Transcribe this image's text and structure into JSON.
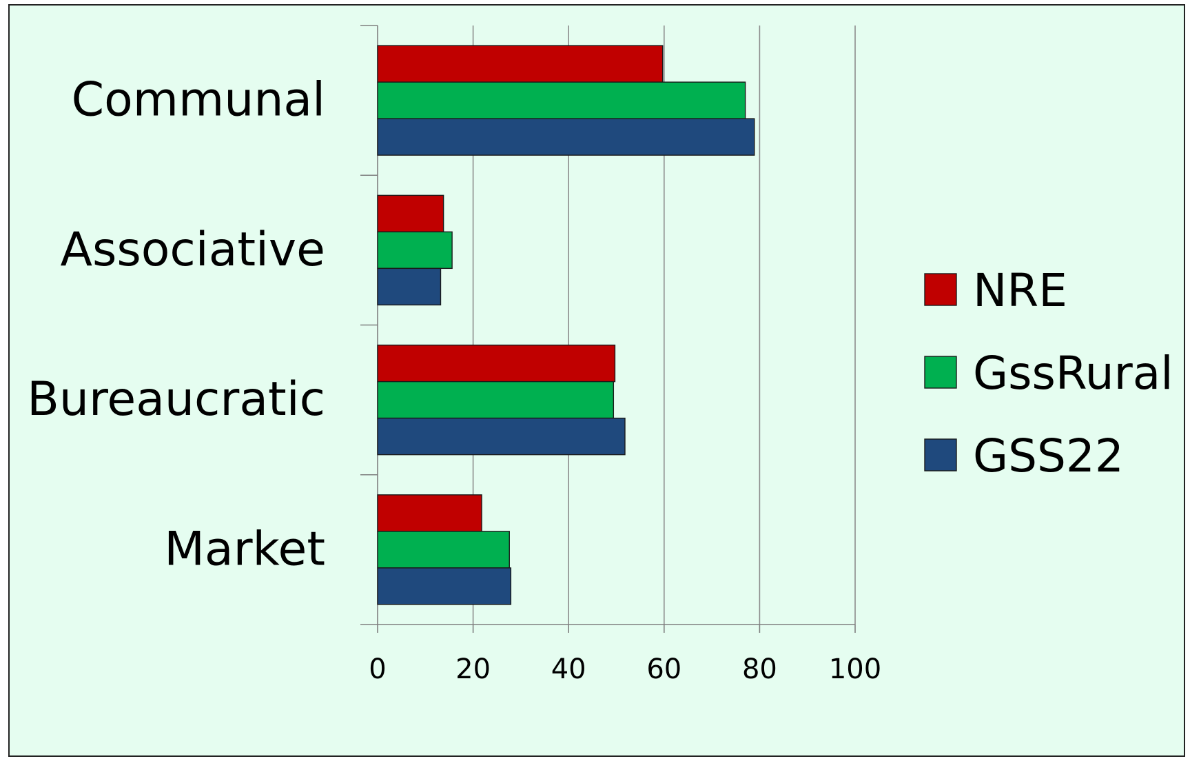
{
  "chart_data": {
    "type": "bar",
    "orientation": "horizontal",
    "title": "",
    "xlabel": "",
    "ylabel": "",
    "categories": [
      "Communal",
      "Associative",
      "Bureaucratic",
      "Market"
    ],
    "series": [
      {
        "name": "NRE",
        "color": "#c00000",
        "values": [
          59.7,
          13.8,
          49.7,
          21.8
        ]
      },
      {
        "name": "GssRural",
        "color": "#00b050",
        "values": [
          77.0,
          15.6,
          49.4,
          27.6
        ]
      },
      {
        "name": "GSS22",
        "color": "#1f497d",
        "values": [
          78.9,
          13.2,
          51.8,
          27.9
        ]
      }
    ],
    "xlim": [
      0,
      100
    ],
    "xticks": [
      "0",
      "20",
      "40",
      "60",
      "80",
      "100"
    ],
    "grid": "vertical",
    "legend_position": "right"
  }
}
